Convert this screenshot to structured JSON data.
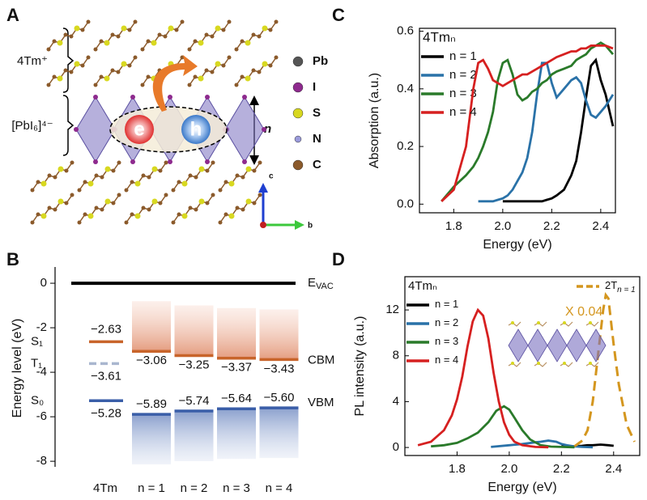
{
  "panel_labels": [
    "A",
    "B",
    "C",
    "D"
  ],
  "diagram": {
    "cation": "4Tm⁺",
    "inorganic": "[PbI₆]⁴⁻",
    "thickness": "n",
    "electron": "e",
    "hole": "h",
    "atoms": [
      {
        "name": "Pb",
        "color": "#555555"
      },
      {
        "name": "I",
        "color": "#8e2a8e"
      },
      {
        "name": "S",
        "color": "#d8d820"
      },
      {
        "name": "N",
        "color": "#9b9bdc"
      },
      {
        "name": "C",
        "color": "#8b5a2b"
      }
    ],
    "axes": [
      "c",
      "b"
    ]
  },
  "chart_data": [
    {
      "type": "energy_level",
      "ylabel": "Energy level (eV)",
      "ylim": [
        -8.25,
        0.73
      ],
      "yticks": [
        0,
        -2,
        -4,
        -6,
        -8
      ],
      "categories": [
        "4Tm",
        "n = 1",
        "n = 2",
        "n = 3",
        "n = 4"
      ],
      "vacuum": {
        "value": 0,
        "label": "E",
        "sub": "VAC",
        "color": "#000000"
      },
      "molecule_levels": [
        {
          "name": "S₁",
          "value": -2.63,
          "value_label": "−2.63",
          "color": "#c8642a",
          "dashed": false
        },
        {
          "name": "T₁",
          "value": -3.61,
          "value_label": "−3.61",
          "color": "#a9b6cf",
          "dashed": true
        },
        {
          "name": "S₀",
          "value": -5.28,
          "value_label": "−5.28",
          "color": "#3a5ea8",
          "dashed": false
        }
      ],
      "series": [
        {
          "name": "CBM",
          "color": "#c8642a",
          "values": [
            null,
            -3.06,
            -3.25,
            -3.37,
            -3.43
          ],
          "value_labels": [
            null,
            "−3.06",
            "−3.25",
            "−3.37",
            "−3.43"
          ]
        },
        {
          "name": "VBM",
          "color": "#3a5ea8",
          "values": [
            null,
            -5.89,
            -5.74,
            -5.64,
            -5.6
          ],
          "value_labels": [
            null,
            "−5.89",
            "−5.74",
            "−5.64",
            "−5.60"
          ]
        }
      ]
    },
    {
      "type": "line",
      "xlabel": "Energy (eV)",
      "ylabel": "Absorption (a.u.)",
      "legend_title": "4Tmₙ",
      "xlim": [
        1.66,
        2.46
      ],
      "ylim": [
        -0.03,
        0.61
      ],
      "xticks": [
        1.8,
        {
          "value": 2,
          "label": "2.0"
        },
        2.2,
        2.4
      ],
      "yticks": [
        {
          "value": 0,
          "label": "0.0"
        },
        0.2,
        0.4,
        0.6
      ],
      "x": [
        1.75,
        1.8,
        1.85,
        1.88,
        1.9,
        1.92,
        1.94,
        1.96,
        1.98,
        2.0,
        2.02,
        2.04,
        2.06,
        2.08,
        2.1,
        2.12,
        2.14,
        2.16,
        2.18,
        2.2,
        2.22,
        2.25,
        2.28,
        2.3,
        2.32,
        2.34,
        2.36,
        2.38,
        2.4,
        2.42,
        2.45
      ],
      "series": [
        {
          "name": "n = 1",
          "color": "#000000",
          "values": [
            null,
            null,
            null,
            null,
            null,
            null,
            null,
            null,
            null,
            0.01,
            0.01,
            0.01,
            0.01,
            0.01,
            0.01,
            0.01,
            0.01,
            0.01,
            0.015,
            0.02,
            0.03,
            0.05,
            0.1,
            0.15,
            0.25,
            0.37,
            0.48,
            0.5,
            0.43,
            0.38,
            0.27
          ]
        },
        {
          "name": "n = 2",
          "color": "#2a72a8",
          "values": [
            null,
            null,
            null,
            null,
            0.01,
            0.01,
            0.01,
            0.01,
            0.015,
            0.02,
            0.03,
            0.05,
            0.08,
            0.11,
            0.16,
            0.25,
            0.38,
            0.49,
            0.49,
            0.42,
            0.37,
            0.4,
            0.43,
            0.44,
            0.42,
            0.36,
            0.31,
            0.3,
            0.32,
            0.34,
            0.38
          ]
        },
        {
          "name": "n = 3",
          "color": "#2a7a2a",
          "values": [
            0.01,
            0.06,
            0.1,
            0.13,
            0.16,
            0.2,
            0.25,
            0.32,
            0.43,
            0.49,
            0.5,
            0.45,
            0.38,
            0.36,
            0.37,
            0.39,
            0.4,
            0.42,
            0.43,
            0.45,
            0.46,
            0.47,
            0.48,
            0.5,
            0.51,
            0.52,
            0.54,
            0.55,
            0.56,
            0.55,
            0.52
          ]
        },
        {
          "name": "n = 4",
          "color": "#d62020",
          "values": [
            0.01,
            0.05,
            0.2,
            0.4,
            0.49,
            0.5,
            0.47,
            0.43,
            0.42,
            0.41,
            0.42,
            0.43,
            0.44,
            0.45,
            0.45,
            0.46,
            0.47,
            0.48,
            0.49,
            0.5,
            0.51,
            0.52,
            0.53,
            0.53,
            0.54,
            0.54,
            0.55,
            0.55,
            0.55,
            0.55,
            0.54
          ]
        }
      ]
    },
    {
      "type": "line",
      "xlabel": "Energy (eV)",
      "ylabel": "PL intensity (a.u.)",
      "legend_title": "4Tmₙ",
      "xlim": [
        1.6,
        2.5
      ],
      "ylim": [
        -0.7,
        14.9
      ],
      "xticks": [
        1.8,
        {
          "value": 2,
          "label": "2.0"
        },
        2.2,
        2.4
      ],
      "yticks": [
        0,
        4,
        8,
        12
      ],
      "annotations": [
        {
          "text": "X 0.04",
          "color": "#d4961e"
        }
      ],
      "series": [
        {
          "name": "n = 1",
          "color": "#000000",
          "x": [
            2.2,
            2.25,
            2.28,
            2.3,
            2.32,
            2.35,
            2.38,
            2.4
          ],
          "values": [
            0.1,
            0.1,
            0.15,
            0.2,
            0.2,
            0.25,
            0.2,
            0.15
          ]
        },
        {
          "name": "n = 2",
          "color": "#2a72a8",
          "x": [
            1.93,
            2.0,
            2.05,
            2.1,
            2.12,
            2.15,
            2.18,
            2.2,
            2.22,
            2.25,
            2.28,
            2.32
          ],
          "values": [
            0.05,
            0.2,
            0.3,
            0.45,
            0.5,
            0.6,
            0.5,
            0.3,
            0.2,
            0.1,
            0.05,
            0.02
          ]
        },
        {
          "name": "n = 3",
          "color": "#2a7a2a",
          "x": [
            1.7,
            1.75,
            1.8,
            1.84,
            1.88,
            1.92,
            1.95,
            1.98,
            2.0,
            2.02,
            2.05,
            2.08,
            2.12,
            2.16,
            2.2,
            2.25
          ],
          "values": [
            0.1,
            0.2,
            0.4,
            0.8,
            1.3,
            2.2,
            3.2,
            3.6,
            3.3,
            2.6,
            1.5,
            0.7,
            0.2,
            0.08,
            0.05,
            0.02
          ]
        },
        {
          "name": "n = 4",
          "color": "#d62020",
          "x": [
            1.65,
            1.7,
            1.75,
            1.78,
            1.8,
            1.82,
            1.84,
            1.86,
            1.88,
            1.9,
            1.92,
            1.94,
            1.96,
            1.98,
            2.0,
            2.02,
            2.05,
            2.1,
            2.15
          ],
          "values": [
            0.2,
            0.5,
            1.5,
            2.8,
            4.2,
            6.2,
            8.8,
            11,
            12,
            11.5,
            9.5,
            6.5,
            4,
            2.2,
            1.1,
            0.5,
            0.2,
            0.05,
            0.02
          ]
        },
        {
          "name": "2T",
          "name_sub": "n = 1",
          "color": "#d4961e",
          "dashed": true,
          "x": [
            2.25,
            2.28,
            2.3,
            2.32,
            2.34,
            2.36,
            2.37,
            2.38,
            2.4,
            2.42,
            2.45,
            2.48
          ],
          "values": [
            0.1,
            0.6,
            1.5,
            4,
            8,
            12,
            13.3,
            13,
            9,
            5.5,
            2,
            0.5
          ]
        }
      ]
    }
  ]
}
